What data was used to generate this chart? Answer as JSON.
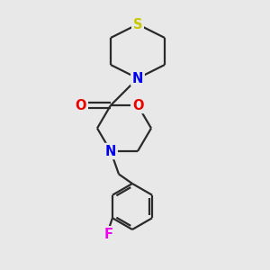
{
  "bg_color": "#e8e8e8",
  "bond_color": "#2a2a2a",
  "line_width": 1.6,
  "atom_colors": {
    "S": "#c8c800",
    "N": "#0000ee",
    "O": "#ee0000",
    "F": "#ee00ee",
    "C": "#2a2a2a"
  },
  "font_size": 10.5
}
